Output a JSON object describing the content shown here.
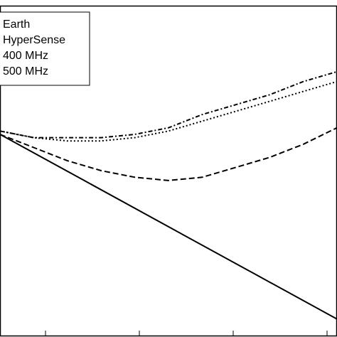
{
  "chart_data": {
    "type": "line",
    "title": "",
    "xlabel": "",
    "ylabel": "",
    "xlim": [
      0,
      1
    ],
    "ylim": [
      0,
      1
    ],
    "grid": false,
    "legend": {
      "placement": "top-left",
      "entries": [
        "Earth",
        "HyperSense",
        "400 MHz",
        "500 MHz"
      ]
    },
    "series": [
      {
        "name": "Earth",
        "line_style": "solid",
        "x": [
          0.0,
          0.25,
          0.5,
          0.75,
          1.0
        ],
        "y": [
          0.61,
          0.47,
          0.33,
          0.19,
          0.05
        ]
      },
      {
        "name": "HyperSense",
        "line_style": "dashed",
        "x": [
          0.0,
          0.1,
          0.2,
          0.3,
          0.4,
          0.5,
          0.6,
          0.7,
          0.8,
          0.9,
          1.0
        ],
        "y": [
          0.61,
          0.57,
          0.53,
          0.5,
          0.48,
          0.47,
          0.48,
          0.51,
          0.54,
          0.58,
          0.63
        ]
      },
      {
        "name": "400 MHz",
        "line_style": "dotted",
        "x": [
          0.0,
          0.1,
          0.2,
          0.3,
          0.4,
          0.5,
          0.6,
          0.7,
          0.8,
          0.9,
          1.0
        ],
        "y": [
          0.62,
          0.6,
          0.59,
          0.59,
          0.6,
          0.62,
          0.65,
          0.68,
          0.71,
          0.74,
          0.77
        ]
      },
      {
        "name": "500 MHz",
        "line_style": "dash-dot",
        "x": [
          0.0,
          0.1,
          0.2,
          0.3,
          0.4,
          0.5,
          0.6,
          0.7,
          0.8,
          0.9,
          1.0
        ],
        "y": [
          0.62,
          0.6,
          0.6,
          0.6,
          0.61,
          0.63,
          0.67,
          0.7,
          0.73,
          0.77,
          0.8
        ]
      }
    ]
  }
}
